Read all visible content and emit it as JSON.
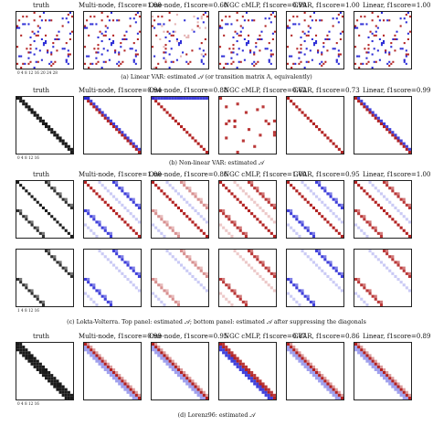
{
  "columns": {
    "c0": "truth",
    "c1_a": "Multi-node, f1score=1.00",
    "c2_a": "One-node, f1score=0.60",
    "c3_a": "NGC cMLP, f1score=0.99",
    "c4_a": "GVAR, f1score=1.00",
    "c5_a": "Linear, f1score=1.00",
    "c1_b": "Multi-node, f1score=0.94",
    "c2_b": "One-node, f1score=0.88",
    "c3_b": "NGC cMLP, f1score=0.62",
    "c4_b": "GVAR, f1score=0.73",
    "c5_b": "Linear, f1score=0.99",
    "c1_c": "Multi-node, f1score=1.00",
    "c2_c": "One-node, f1score=0.86",
    "c3_c": "NGC cMLP, f1score=1.00",
    "c4_c": "GVAR, f1score=0.95",
    "c5_c": "Linear, f1score=1.00",
    "c1_d": "Multi-node, f1score=0.99",
    "c2_d": "One-node, f1score=0.95",
    "c3_d": "NGC cMLP, f1score=0.87",
    "c4_d": "GVAR, f1score=0.86",
    "c5_d": "Linear, f1score=0.89"
  },
  "captions": {
    "a": "(a) Linear VAR: estimated 𝒜 (or transition matrix A, equivalently)",
    "b": "(b) Non-linear VAR: estimated 𝒜",
    "c": "(c) Lokta-Volterra. Top panel: estimated 𝒜; bottom panel: estimated 𝒜 after suppressing the diagonals",
    "d": "(d) Lorenz96: estimated 𝒜"
  },
  "ticks": {
    "a_x": "0  4  8  12  16  20  24  28",
    "a_y": "0\n2\n4\n6\n8\n10\n12\n14\n16\n18\n20\n22\n24\n26",
    "b_x": "0   4   8   12  16",
    "c_x": "1   4    8   12   16",
    "d_x": "0   4   8   12  16"
  },
  "colors": {
    "red": "#b22222",
    "blue": "#2b2bd6",
    "dark": "#1a1a1a"
  }
}
